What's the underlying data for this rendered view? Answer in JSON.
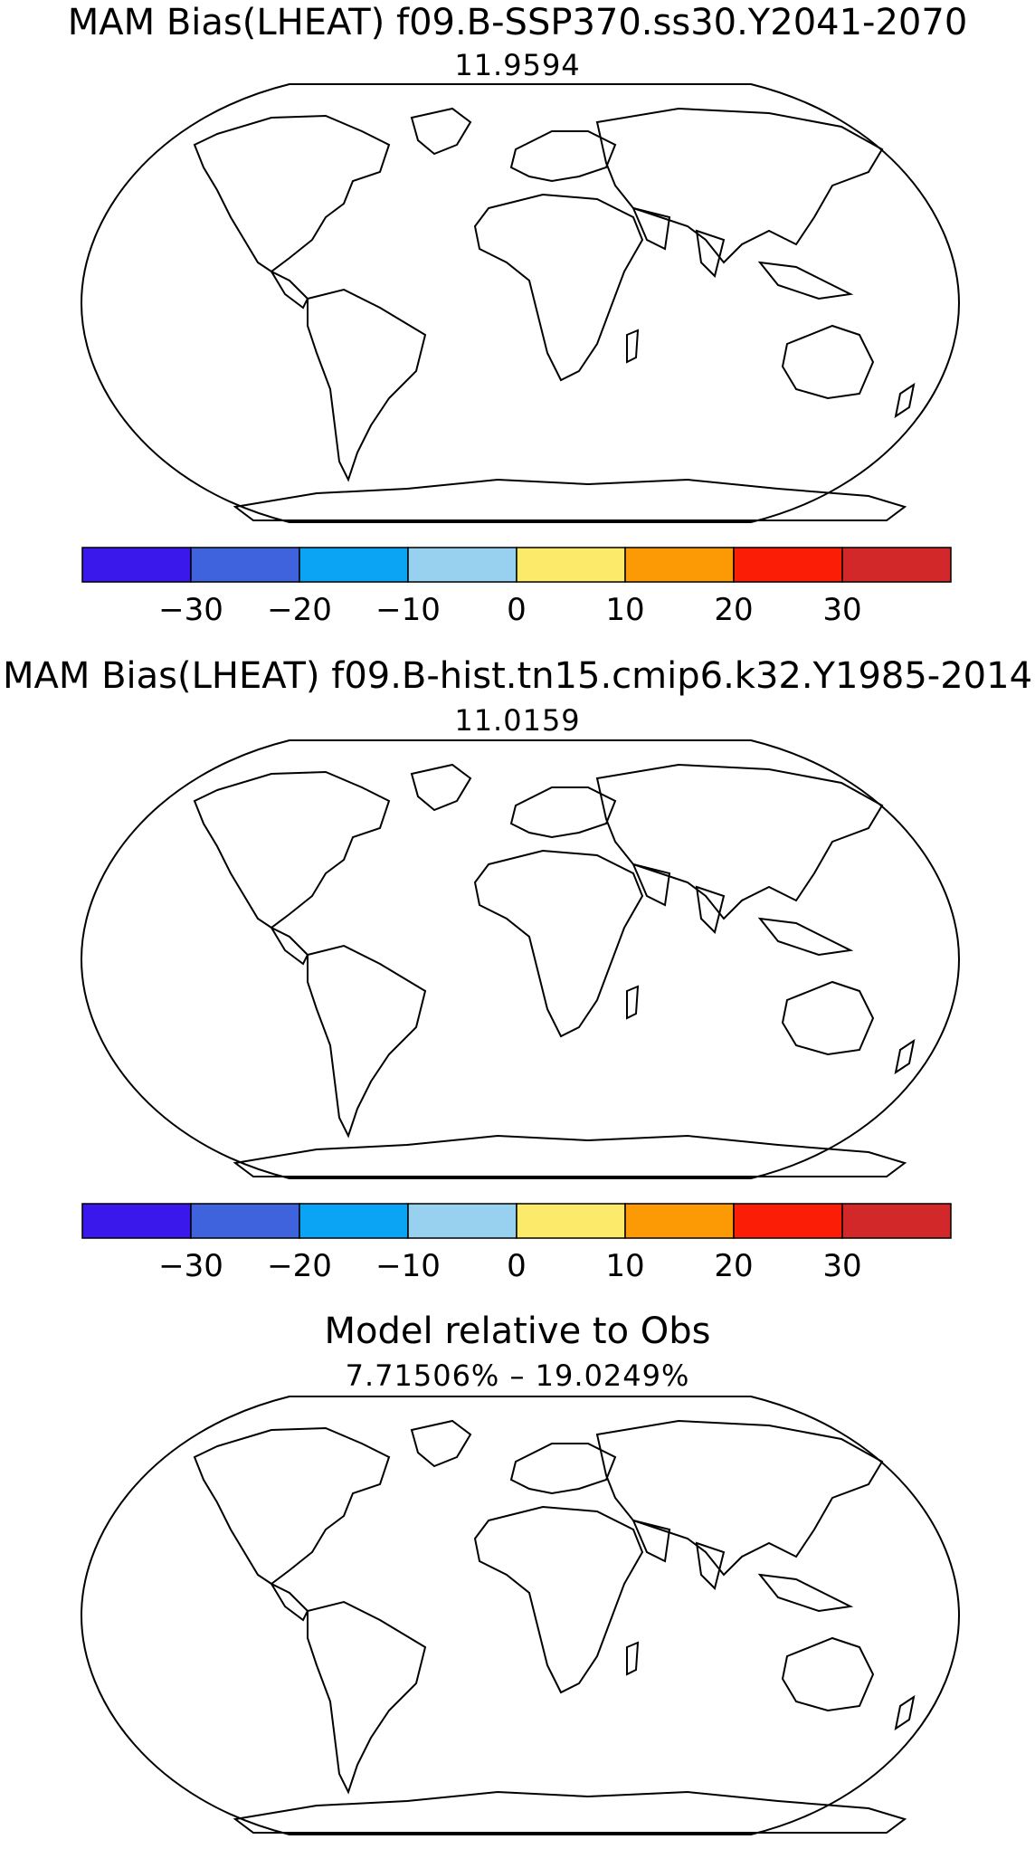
{
  "panels": [
    {
      "title": "MAM Bias(LHEAT) f09.B-SSP370.ss30.Y2041-2070",
      "subtitle": "11.9594",
      "map_type": "bias"
    },
    {
      "title": "MAM Bias(LHEAT) f09.B-hist.tn15.cmip6.k32.Y1985-2014",
      "subtitle": "11.0159",
      "map_type": "bias"
    },
    {
      "title": "Model relative to Obs",
      "subtitle": "7.71506% – 19.0249%",
      "map_type": "relative"
    }
  ],
  "colorbar": {
    "colors": [
      "#3a17ea",
      "#3f63dd",
      "#0ba3f4",
      "#98d1f0",
      "#fceb6b",
      "#fb9a04",
      "#fb1d06",
      "#d3282a"
    ],
    "tick_labels": [
      "−30",
      "−20",
      "−10",
      "0",
      "10",
      "20",
      "30"
    ]
  },
  "colors": {
    "relative_red": "#ff1a1a",
    "relative_green": "#33ee22",
    "coastline": "#000000"
  }
}
